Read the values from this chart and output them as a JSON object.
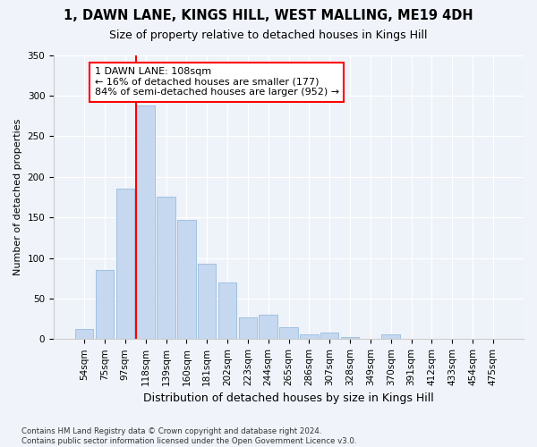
{
  "title1": "1, DAWN LANE, KINGS HILL, WEST MALLING, ME19 4DH",
  "title2": "Size of property relative to detached houses in Kings Hill",
  "xlabel": "Distribution of detached houses by size in Kings Hill",
  "ylabel": "Number of detached properties",
  "categories": [
    "54sqm",
    "75sqm",
    "97sqm",
    "118sqm",
    "139sqm",
    "160sqm",
    "181sqm",
    "202sqm",
    "223sqm",
    "244sqm",
    "265sqm",
    "286sqm",
    "307sqm",
    "328sqm",
    "349sqm",
    "370sqm",
    "391sqm",
    "412sqm",
    "433sqm",
    "454sqm",
    "475sqm"
  ],
  "values": [
    13,
    85,
    185,
    288,
    175,
    147,
    93,
    70,
    27,
    30,
    15,
    6,
    8,
    3,
    0,
    6,
    0,
    0,
    0,
    0,
    0
  ],
  "bar_color": "#c5d8f0",
  "bar_edge_color": "#8ab4d8",
  "vline_x_idx": 3,
  "vline_color": "red",
  "annotation_text": "1 DAWN LANE: 108sqm\n← 16% of detached houses are smaller (177)\n84% of semi-detached houses are larger (952) →",
  "annotation_box_color": "white",
  "annotation_box_edge": "red",
  "ylim": [
    0,
    350
  ],
  "yticks": [
    0,
    50,
    100,
    150,
    200,
    250,
    300,
    350
  ],
  "footnote": "Contains HM Land Registry data © Crown copyright and database right 2024.\nContains public sector information licensed under the Open Government Licence v3.0.",
  "bg_color": "#f0f4fa",
  "plot_bg_color": "#eef2f9",
  "title1_fontsize": 10.5,
  "title2_fontsize": 9,
  "axis_fontsize": 8,
  "tick_fontsize": 7.5,
  "annot_fontsize": 8,
  "xlabel_fontsize": 9
}
